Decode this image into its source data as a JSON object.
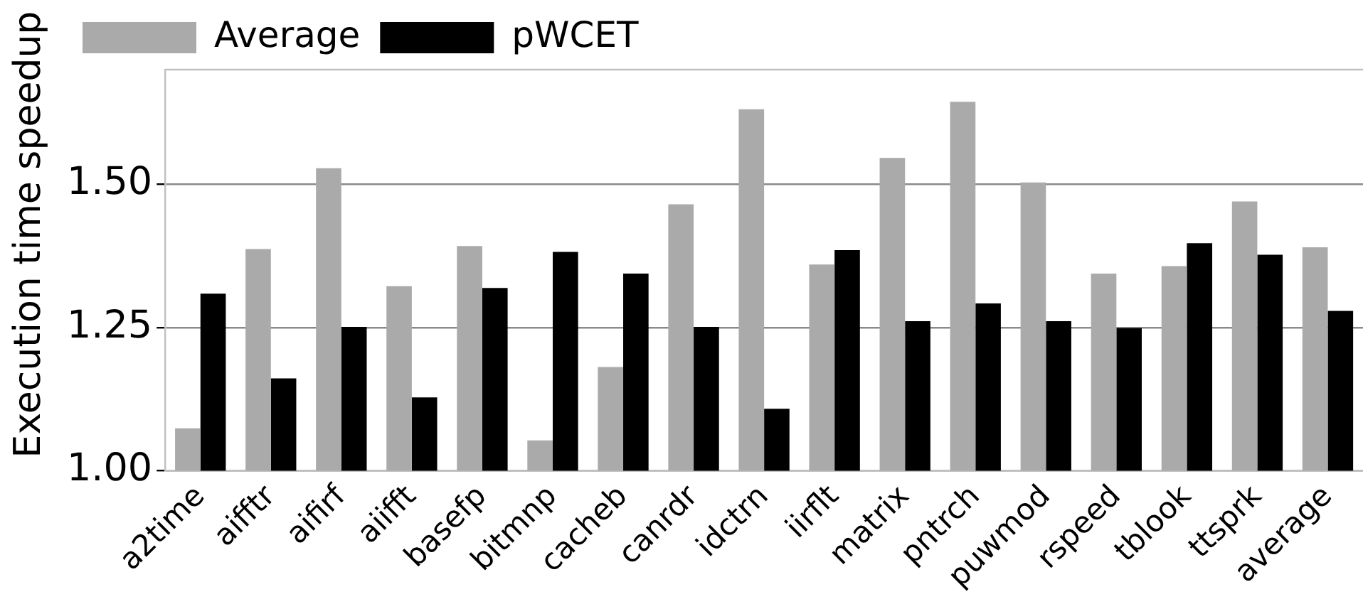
{
  "chart_data": {
    "type": "bar",
    "ylabel": "Execution time speedup",
    "categories": [
      "a2time",
      "aifftr",
      "aifirf",
      "aiifft",
      "basefp",
      "bitmnp",
      "cacheb",
      "canrdr",
      "idctrn",
      "iirflt",
      "matrix",
      "pntrch",
      "puwmod",
      "rspeed",
      "tblook",
      "ttsprk",
      "average"
    ],
    "series": [
      {
        "name": "Average",
        "color": "#aaaaaa",
        "values": [
          1.074,
          1.387,
          1.528,
          1.322,
          1.392,
          1.053,
          1.181,
          1.465,
          1.631,
          1.36,
          1.546,
          1.644,
          1.503,
          1.344,
          1.357,
          1.47,
          1.39
        ]
      },
      {
        "name": "pWCET",
        "color": "#000000",
        "values": [
          1.309,
          1.161,
          1.251,
          1.128,
          1.319,
          1.382,
          1.344,
          1.251,
          1.108,
          1.385,
          1.261,
          1.292,
          1.261,
          1.249,
          1.397,
          1.377,
          1.279
        ]
      }
    ],
    "ylim": [
      1,
      1.7
    ],
    "yticks": [
      {
        "value": 1,
        "label": "1.00"
      },
      {
        "value": 1.25,
        "label": "1.25"
      },
      {
        "value": 1.5,
        "label": "1.50"
      }
    ],
    "grid": "y",
    "legend": "top left"
  }
}
